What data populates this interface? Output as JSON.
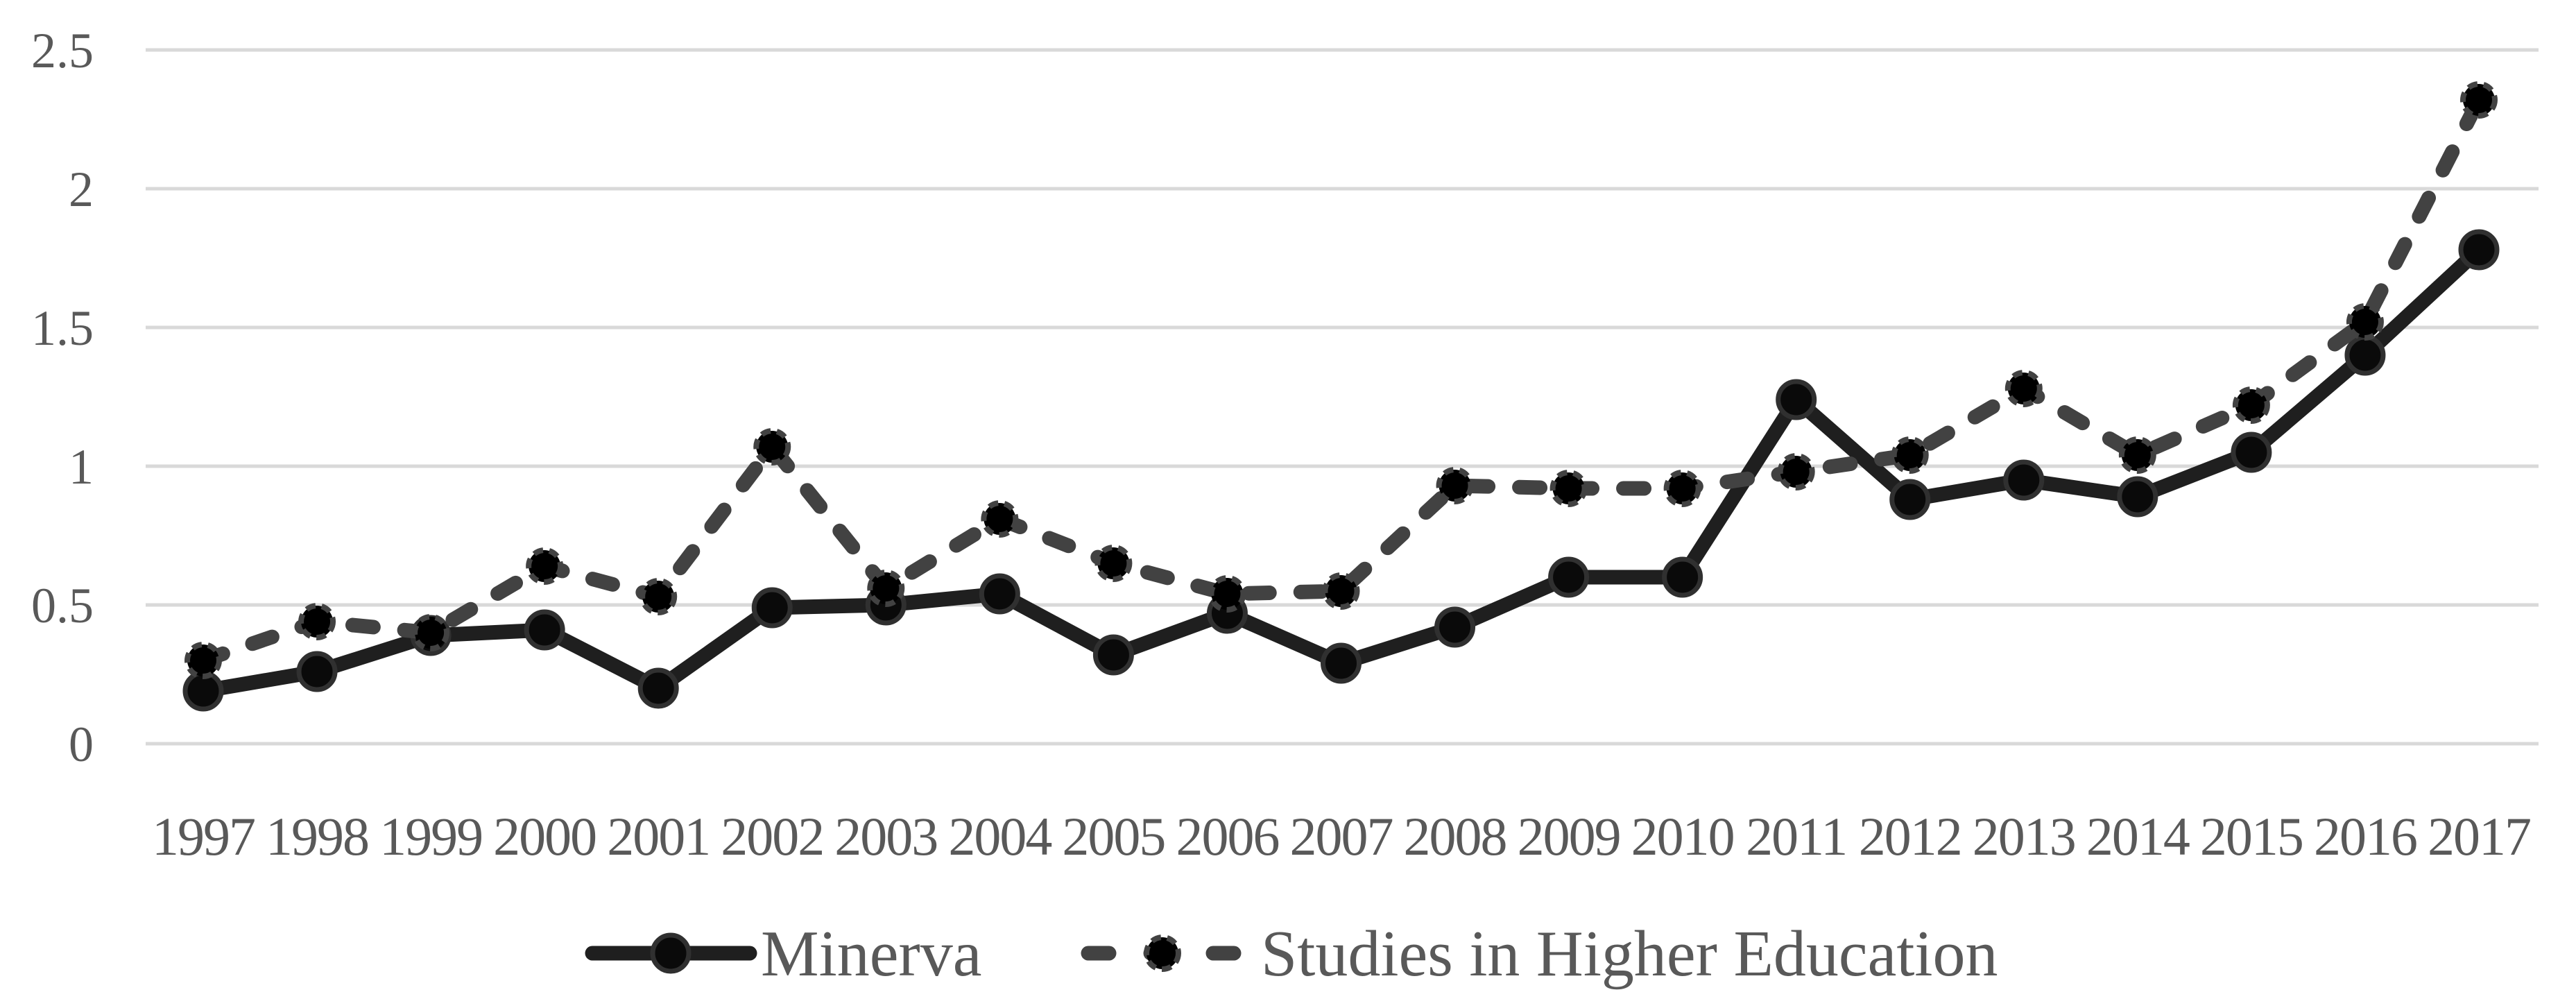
{
  "chart_data": {
    "type": "line",
    "title": "",
    "xlabel": "",
    "ylabel": "",
    "x": [
      1997,
      1998,
      1999,
      2000,
      2001,
      2002,
      2003,
      2004,
      2005,
      2006,
      2007,
      2008,
      2009,
      2010,
      2011,
      2012,
      2013,
      2014,
      2015,
      2016,
      2017
    ],
    "series": [
      {
        "name": "Minerva",
        "line_style": "solid",
        "line_color": "#1f1f1f",
        "marker": "circle",
        "marker_fill": "#0a0a0a",
        "marker_ring": "#303030",
        "values": [
          0.19,
          0.26,
          0.39,
          0.41,
          0.2,
          0.49,
          0.5,
          0.54,
          0.32,
          0.47,
          0.29,
          0.42,
          0.6,
          0.6,
          1.24,
          0.88,
          0.95,
          0.89,
          1.05,
          1.4,
          1.78
        ]
      },
      {
        "name": "Studies in Higher Education",
        "line_style": "dashed",
        "line_color": "#424242",
        "marker": "circle-dashed-ring",
        "marker_fill": "#000000",
        "marker_ring": "#424242",
        "values": [
          0.3,
          0.44,
          0.4,
          0.64,
          0.53,
          1.07,
          0.56,
          0.81,
          0.65,
          0.54,
          0.55,
          0.93,
          0.92,
          0.92,
          0.98,
          1.04,
          1.28,
          1.04,
          1.22,
          1.52,
          2.32
        ]
      }
    ],
    "ylim": [
      0,
      2.5
    ],
    "ytick_labels": [
      "0",
      "0.5",
      "1",
      "1.5",
      "2",
      "2.5"
    ],
    "ytick_values": [
      0,
      0.5,
      1,
      1.5,
      2,
      2.5
    ],
    "grid": "horizontal",
    "gridline_color": "#d9d9d9",
    "axis_text_color": "#595959",
    "background_color": "#ffffff",
    "legend_position": "bottom"
  },
  "legend": {
    "items": [
      {
        "label": "Minerva"
      },
      {
        "label": "Studies in Higher Education"
      }
    ]
  }
}
